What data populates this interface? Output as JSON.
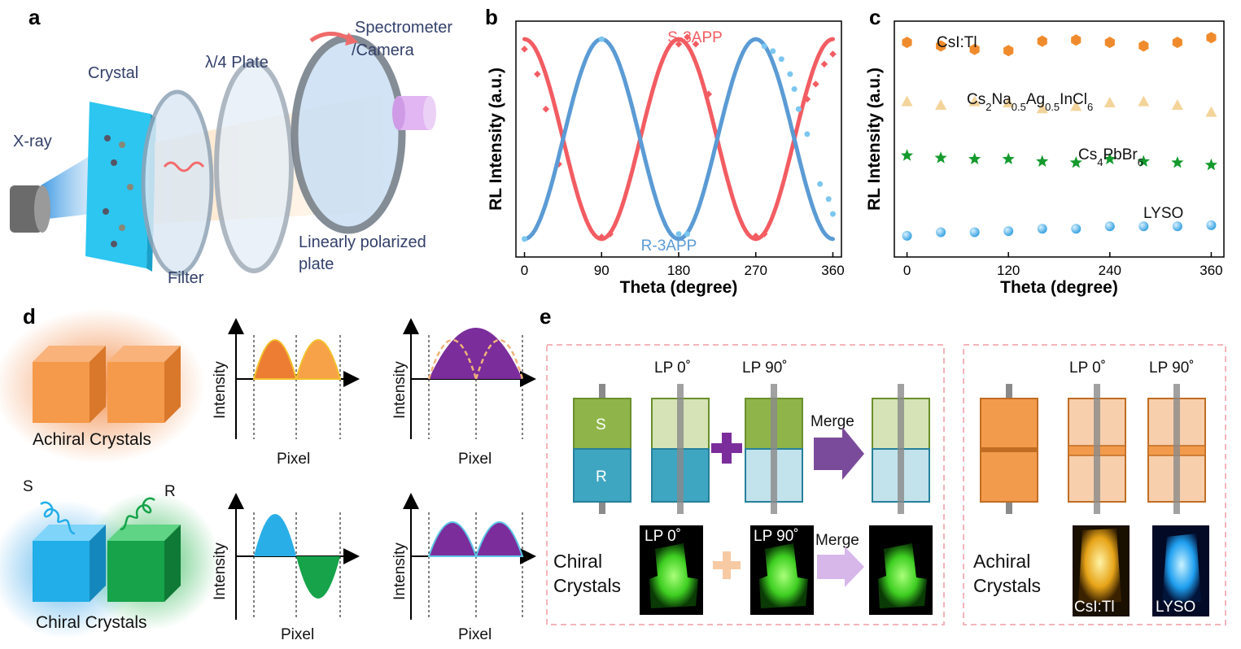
{
  "panels": {
    "a": {
      "label": "a",
      "xray": "X-ray",
      "crystal": "Crystal",
      "filter": "Filter",
      "quarter_plate": "λ/4 Plate",
      "spectrometer_1": "Spectrometer",
      "spectrometer_2": "/Camera",
      "polarizer_1": "Linearly polarized",
      "polarizer_2": "plate"
    },
    "b": {
      "label": "b"
    },
    "c": {
      "label": "c"
    },
    "d": {
      "label": "d",
      "achiral_caption": "Achiral Crystals",
      "chiral_caption": "Chiral Crystals",
      "s_tag": "S",
      "r_tag": "R",
      "ylabel": "Intensity",
      "xlabel": "Pixel"
    },
    "e": {
      "label": "e",
      "lp0": "LP 0˚",
      "lp90": "LP 90˚",
      "merge": "Merge",
      "s_label": "S",
      "r_label": "R",
      "chiral_1": "Chiral",
      "chiral_2": "Crystals",
      "achiral_1": "Achiral",
      "achiral_2": "Crystals",
      "photo_lp0": "LP 0˚",
      "photo_lp90": "LP 90˚",
      "photo_merge": "Merge",
      "photo_csi": "CsI:Tl",
      "photo_lyso": "LYSO"
    }
  },
  "chart_data": [
    {
      "type": "line",
      "panel": "b",
      "xlabel": "Theta (degree)",
      "ylabel": "RL Intensity (a.u.)",
      "xlim": [
        -10,
        370
      ],
      "ylim": [
        -1.18,
        1.18
      ],
      "xticks": [
        0,
        90,
        180,
        270,
        360
      ],
      "series": [
        {
          "name": "S-3APP",
          "color": "#f25c62",
          "fit": {
            "model": "cos",
            "amplitude": 1,
            "period_deg": 180,
            "phase_deg": 0
          },
          "x": [
            0,
            15,
            25,
            40,
            90,
            100,
            180,
            190,
            200,
            215,
            270,
            280,
            330,
            340,
            350,
            360
          ],
          "y": [
            0.9,
            0.65,
            0.3,
            -0.25,
            -0.98,
            -0.95,
            0.95,
            1.02,
            0.95,
            0.45,
            -0.97,
            -0.95,
            0.4,
            0.55,
            0.75,
            0.85
          ]
        },
        {
          "name": "R-3APP",
          "color": "#5b9bd5",
          "fit": {
            "model": "cos",
            "amplitude": -1,
            "period_deg": 180,
            "phase_deg": 0
          },
          "x": [
            0,
            90,
            180,
            190,
            280,
            290,
            300,
            310,
            315,
            320,
            330,
            345,
            355,
            360
          ],
          "y": [
            -1.0,
            1.0,
            -0.95,
            -0.95,
            0.93,
            0.88,
            0.8,
            0.65,
            0.5,
            0.3,
            0.05,
            -0.45,
            -0.6,
            -0.75
          ]
        }
      ]
    },
    {
      "type": "scatter",
      "panel": "c",
      "xlabel": "Theta (degree)",
      "ylabel": "RL Intensity (a.u.)",
      "xlim": [
        -15,
        375
      ],
      "ylim": [
        0,
        10
      ],
      "xticks": [
        0,
        120,
        240,
        360
      ],
      "x": [
        0,
        40,
        80,
        120,
        160,
        200,
        240,
        280,
        320,
        360
      ],
      "series": [
        {
          "name": "CsI:Tl",
          "marker": "hexagon",
          "color": "#f08b2d",
          "values": [
            9.1,
            8.95,
            8.8,
            8.75,
            9.15,
            9.2,
            9.1,
            8.95,
            9.1,
            9.3
          ]
        },
        {
          "name": "Cs2Na0.5Ag0.5InCl6",
          "marker": "triangle",
          "color": "#f3d49a",
          "values": [
            6.6,
            6.45,
            6.6,
            6.55,
            6.3,
            6.4,
            6.55,
            6.6,
            6.45,
            6.15
          ]
        },
        {
          "name": "Cs4PbBr6",
          "marker": "star",
          "color": "#159a2d",
          "values": [
            4.3,
            4.2,
            4.15,
            4.15,
            4.05,
            4.0,
            4.15,
            4.05,
            4.0,
            3.9
          ]
        },
        {
          "name": "LYSO",
          "marker": "sphere",
          "color": "#45b1e8",
          "values": [
            0.9,
            1.05,
            1.05,
            1.1,
            1.2,
            1.2,
            1.3,
            1.3,
            1.3,
            1.35
          ]
        }
      ]
    }
  ]
}
